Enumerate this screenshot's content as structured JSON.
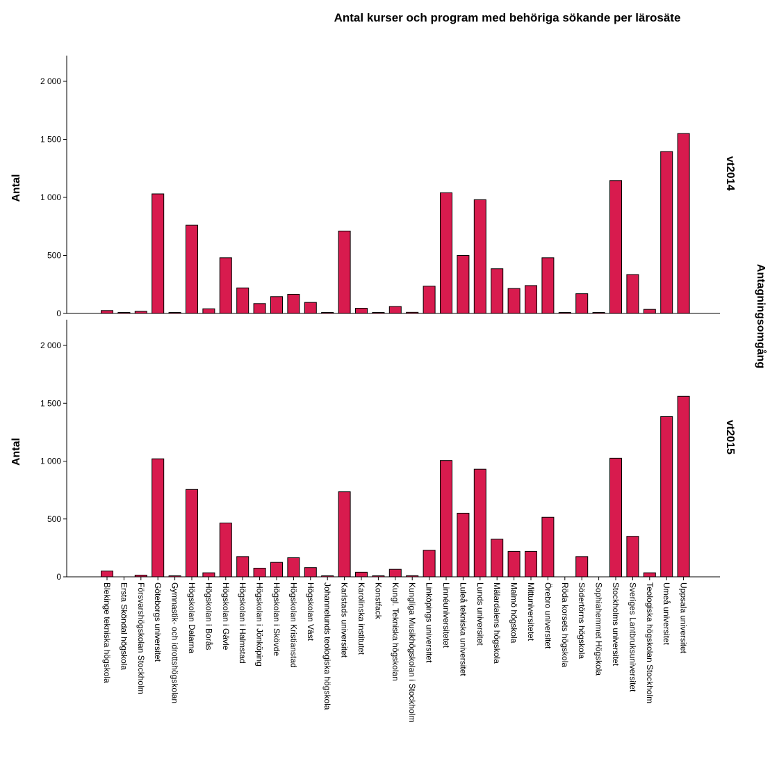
{
  "chart_data": {
    "type": "bar",
    "title": "Antal kurser och program med behöriga sökande per lärosäte",
    "ylabel": "Antal",
    "facet_label": "Antagningsomgång",
    "ylim": [
      0,
      2000
    ],
    "yticks": [
      0,
      500,
      1000,
      1500,
      2000
    ],
    "ytick_labels": [
      "0",
      "500",
      "1 000",
      "1 500",
      "2 000"
    ],
    "bar_color": "#d81b4e",
    "bar_edge_color": "#000000",
    "grid": false,
    "categories": [
      "Blekinge tekniska högskola",
      "Ersta Sköndal högskola",
      "Försvarshögskolan Stockholm",
      "Göteborgs universitet",
      "Gymnastik- och idrottshögskolan",
      "Högskolan Dalarna",
      "Högskolan i Borås",
      "Högskolan i Gävle",
      "Högskolan i Halmstad",
      "Högskolan i Jönköping",
      "Högskolan i Skövde",
      "Högskolan Kristianstad",
      "Högskolan Väst",
      "Johannelunds teologiska högskola",
      "Karlstads universitet",
      "Karolinska institutet",
      "Konstfack",
      "Kungl. Tekniska högskolan",
      "Kungliga Musikhögskolan i Stockholm",
      "Linköpings universitet",
      "Linnéuniversitetet",
      "Luleå tekniska universitet",
      "Lunds universitet",
      "Mälardalens högskola",
      "Malmö högskola",
      "Mittuniversitetet",
      "Örebro universitet",
      "Röda korsets högskola",
      "Södertörns högskola",
      "Sophiahemmet Högskola",
      "Stockholms universitet",
      "Sveriges Lantbruksuniversitet",
      "Teologiska högskolan Stockholm",
      "Umeå universitet",
      "Uppsala universitet"
    ],
    "series": [
      {
        "name": "vt2014",
        "values": [
          25,
          3,
          18,
          1030,
          5,
          760,
          40,
          480,
          220,
          85,
          145,
          165,
          95,
          5,
          710,
          45,
          3,
          60,
          10,
          235,
          1040,
          500,
          980,
          385,
          215,
          240,
          480,
          3,
          170,
          3,
          1145,
          335,
          35,
          1395,
          1550
        ]
      },
      {
        "name": "vt2015",
        "values": [
          50,
          0,
          15,
          1020,
          5,
          755,
          35,
          465,
          175,
          75,
          125,
          165,
          80,
          3,
          735,
          40,
          5,
          65,
          10,
          230,
          1005,
          550,
          930,
          325,
          220,
          220,
          515,
          0,
          175,
          0,
          1025,
          350,
          35,
          1385,
          1560
        ]
      }
    ]
  }
}
